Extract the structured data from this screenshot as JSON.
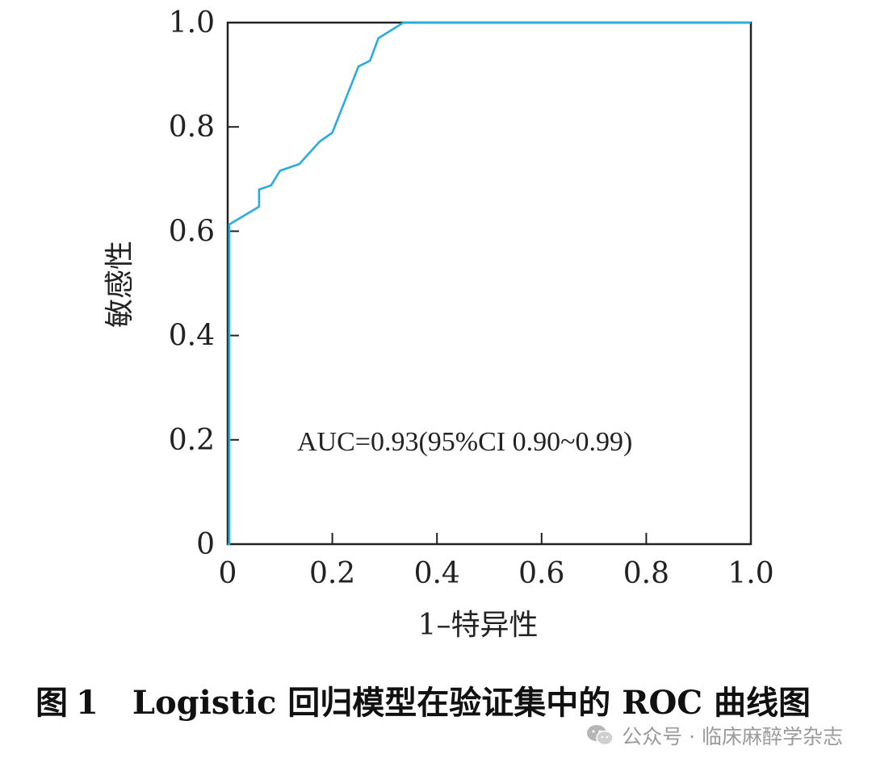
{
  "chart_data": {
    "type": "line",
    "xlabel": "1–特异性",
    "ylabel": "敏感性",
    "xlim": [
      0,
      1
    ],
    "ylim": [
      0,
      1
    ],
    "xticks": [
      "0",
      "0.2",
      "0.4",
      "0.6",
      "0.8",
      "1.0"
    ],
    "yticks": [
      "0",
      "0.2",
      "0.4",
      "0.6",
      "0.8",
      "1.0"
    ],
    "grid": false,
    "annotation": "AUC=0.93(95%CI 0.90~0.99)",
    "series": [
      {
        "color": "#29abe2",
        "x": [
          0,
          0.003,
          0.003,
          0.06,
          0.06,
          0.083,
          0.1,
          0.137,
          0.176,
          0.2,
          0.25,
          0.272,
          0.288,
          0.336,
          1.0
        ],
        "y": [
          0,
          0.0,
          0.613,
          0.647,
          0.68,
          0.688,
          0.716,
          0.729,
          0.772,
          0.789,
          0.916,
          0.927,
          0.97,
          1.0,
          1.0
        ]
      }
    ]
  },
  "caption": {
    "prefix": "图",
    "number": "1",
    "text": "Logistic 回归模型在验证集中的 ROC 曲线图"
  },
  "watermark": {
    "icon": "wechat-icon",
    "text": "公众号 · 临床麻醉学杂志"
  }
}
